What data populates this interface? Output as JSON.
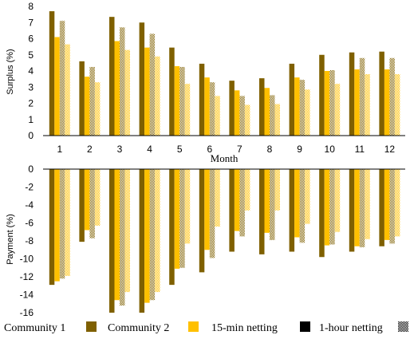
{
  "chart_data": [
    {
      "type": "bar",
      "xlabel": "Month",
      "ylabel": "Surplus (%)",
      "ylim": [
        0,
        8
      ],
      "yticks": [
        0,
        1,
        2,
        3,
        4,
        5,
        6,
        7,
        8
      ],
      "grid": false,
      "categories": [
        "1",
        "2",
        "3",
        "4",
        "5",
        "6",
        "7",
        "8",
        "9",
        "10",
        "11",
        "12"
      ],
      "series": [
        {
          "name": "15-min netting",
          "values": [
            7.7,
            4.6,
            7.35,
            7.0,
            5.45,
            4.45,
            3.4,
            3.55,
            4.45,
            5.0,
            5.15,
            5.2
          ]
        },
        {
          "name": "1-hour netting",
          "values": [
            6.1,
            3.65,
            5.85,
            5.45,
            4.3,
            3.6,
            2.8,
            2.95,
            3.6,
            4.0,
            4.1,
            4.1
          ]
        },
        {
          "name": "Community 1 (15-min)",
          "values": [
            7.1,
            4.25,
            6.7,
            6.3,
            4.25,
            3.3,
            2.45,
            2.5,
            3.45,
            4.05,
            4.8,
            4.8
          ]
        },
        {
          "name": "Community 2 (15-min)",
          "values": [
            5.65,
            3.3,
            5.3,
            4.9,
            3.2,
            2.45,
            1.9,
            1.95,
            2.85,
            3.2,
            3.8,
            3.8
          ]
        }
      ]
    },
    {
      "type": "bar",
      "xlabel": "",
      "ylabel": "Payment (%)",
      "ylim": [
        -16,
        0
      ],
      "yticks": [
        0,
        -2,
        -4,
        -6,
        -8,
        -10,
        -12,
        -14,
        -16
      ],
      "grid": false,
      "categories": [
        "1",
        "2",
        "3",
        "4",
        "5",
        "6",
        "7",
        "8",
        "9",
        "10",
        "11",
        "12"
      ],
      "series": [
        {
          "name": "15-min netting",
          "values": [
            -12.9,
            -8.1,
            -16.0,
            -16.0,
            -12.9,
            -11.5,
            -9.2,
            -9.5,
            -9.2,
            -9.8,
            -9.2,
            -8.6
          ]
        },
        {
          "name": "1-hour netting",
          "values": [
            -12.5,
            -6.8,
            -14.6,
            -14.9,
            -11.1,
            -9.0,
            -6.9,
            -7.1,
            -7.6,
            -8.5,
            -8.6,
            -7.9
          ]
        },
        {
          "name": "Community 1 (15-min)",
          "values": [
            -12.2,
            -7.7,
            -15.2,
            -14.6,
            -11.0,
            -9.9,
            -7.5,
            -7.9,
            -8.2,
            -8.4,
            -8.7,
            -8.3
          ]
        },
        {
          "name": "Community 2 (15-min)",
          "values": [
            -11.9,
            -6.3,
            -13.7,
            -13.7,
            -8.3,
            -6.4,
            -4.6,
            -4.6,
            -6.1,
            -7.0,
            -7.8,
            -7.5
          ]
        }
      ]
    }
  ],
  "legend": {
    "placement": "bottom",
    "items": [
      {
        "label": "Community 1",
        "swatch": "community-2-swatch"
      },
      {
        "label": "Community 2",
        "swatch": "gold-swatch"
      },
      {
        "label": "15-min netting",
        "swatch": "black-swatch"
      },
      {
        "label": "1-hour netting",
        "swatch": "checker-swatch"
      }
    ]
  },
  "colors": {
    "series_1": "#7f6000",
    "series_2": "#ffc000",
    "series_3_checker": "#7f6000",
    "series_4_checker": "#ffc000",
    "black": "#000000"
  }
}
